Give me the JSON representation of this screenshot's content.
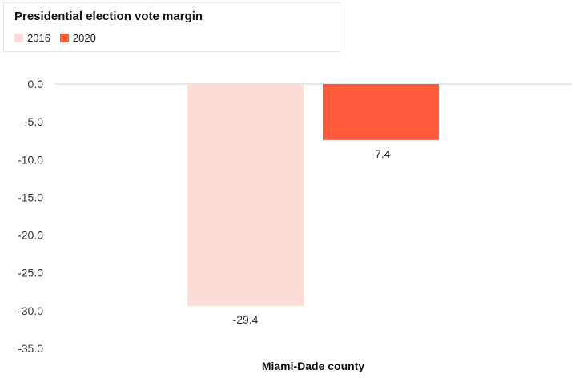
{
  "chart_data": {
    "type": "bar",
    "title": "Presidential election vote margin",
    "categories": [
      "Miami-Dade county"
    ],
    "series": [
      {
        "name": "2016",
        "values": [
          -29.4
        ],
        "color": "#fdddd6"
      },
      {
        "name": "2020",
        "values": [
          -7.4
        ],
        "color": "#ff5a3c"
      }
    ],
    "ylim": [
      -35,
      0
    ],
    "yticks": [
      "0.0",
      "-5.0",
      "-10.0",
      "-15.0",
      "-20.0",
      "-25.0",
      "-30.0",
      "-35.0"
    ],
    "data_labels": [
      "-29.4",
      "-7.4"
    ],
    "legend_position": "top-left",
    "grid": false
  }
}
